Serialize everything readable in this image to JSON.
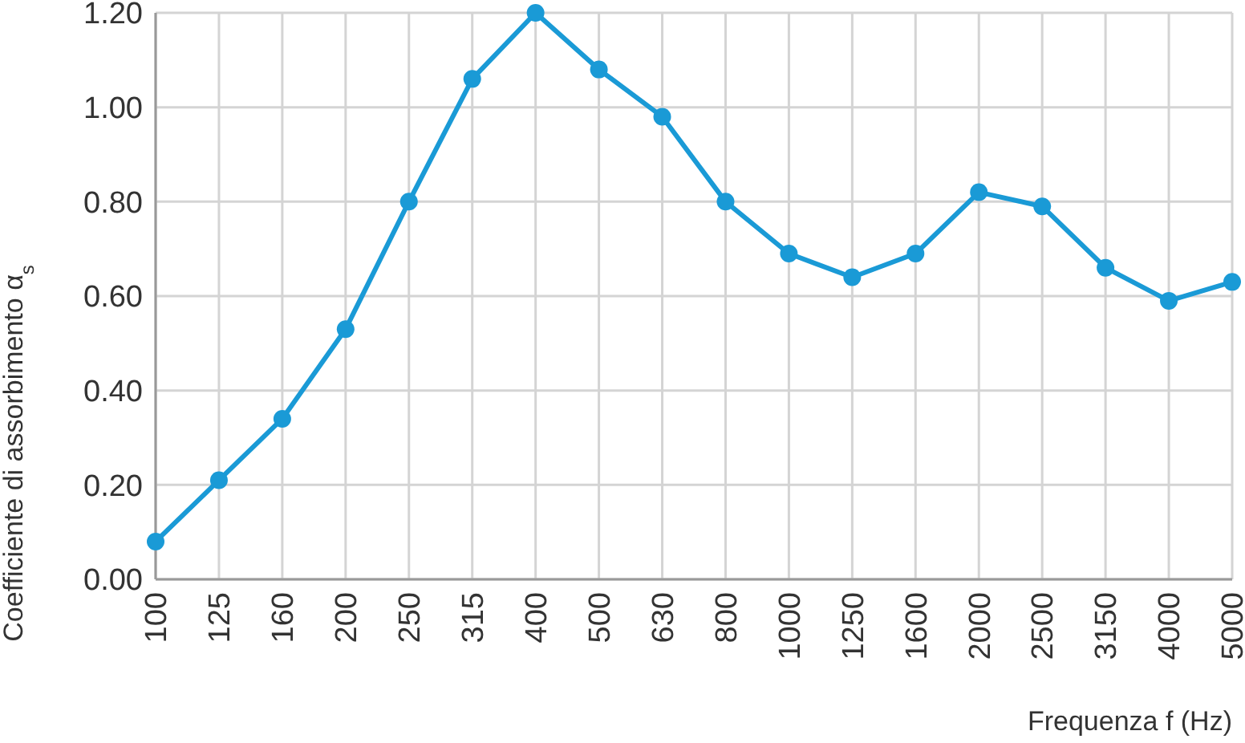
{
  "chart_data": {
    "type": "line",
    "xlabel": "Frequenza f (Hz)",
    "ylabel": "Coefficiente di assorbimento α$_{s}$",
    "categories": [
      "100",
      "125",
      "160",
      "200",
      "250",
      "315",
      "400",
      "500",
      "630",
      "800",
      "1000",
      "1250",
      "1600",
      "2000",
      "2500",
      "3150",
      "4000",
      "5000"
    ],
    "series": [
      {
        "color": "#1a9ad6",
        "values": [
          0.08,
          0.21,
          0.34,
          0.53,
          0.8,
          1.06,
          1.2,
          1.08,
          0.98,
          0.8,
          0.69,
          0.64,
          0.69,
          0.82,
          0.79,
          0.66,
          0.59,
          0.63
        ]
      }
    ],
    "ylim": [
      0,
      1.2
    ],
    "yticks": [
      {
        "value": 0,
        "label": "0.00"
      },
      {
        "value": 0.2,
        "label": "0.20"
      },
      {
        "value": 0.4,
        "label": "0.40"
      },
      {
        "value": 0.6,
        "label": "0.60"
      },
      {
        "value": 0.8,
        "label": "0.80"
      },
      {
        "value": 1,
        "label": "1.00"
      },
      {
        "value": 1.2,
        "label": "1.20"
      }
    ],
    "grid": true,
    "marker": "circle",
    "line_style": "solid"
  }
}
